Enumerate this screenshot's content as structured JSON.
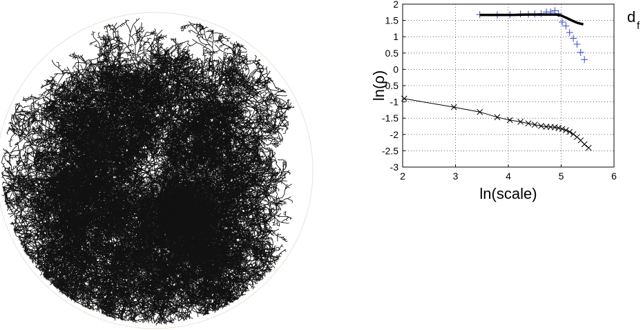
{
  "chart_data": {
    "type": "line",
    "xlabel": "ln(scale)",
    "ylabel": "ln(ρ)",
    "annotation": {
      "text": "d",
      "subscript": "f"
    },
    "xlim": [
      2,
      6
    ],
    "xticks": [
      2,
      3,
      4,
      5,
      6
    ],
    "ylim": [
      -3,
      2
    ],
    "yticks": [
      -3,
      -2.5,
      -2,
      -1.5,
      -1,
      -0.5,
      0,
      0.5,
      1,
      1.5,
      2
    ],
    "grid": true,
    "series": [
      {
        "color": "#000000",
        "marker": "x",
        "linewidth": 1,
        "x": [
          2.03,
          2.97,
          3.46,
          3.79,
          4.03,
          4.23,
          4.38,
          4.5,
          4.62,
          4.72,
          4.8,
          4.88,
          4.95,
          5.02,
          5.09,
          5.16,
          5.23,
          5.3,
          5.37,
          5.44,
          5.52
        ],
        "values": [
          -0.9,
          -1.16,
          -1.31,
          -1.47,
          -1.56,
          -1.61,
          -1.66,
          -1.7,
          -1.74,
          -1.76,
          -1.77,
          -1.78,
          -1.8,
          -1.83,
          -1.87,
          -1.92,
          -1.99,
          -2.08,
          -2.18,
          -2.3,
          -2.41
        ]
      },
      {
        "color": "#3344dd",
        "marker": "+",
        "linewidth": 0,
        "x": [
          3.46,
          3.79,
          4.03,
          4.23,
          4.38,
          4.5,
          4.62,
          4.72,
          4.8,
          4.88,
          4.95,
          5.02,
          5.09,
          5.16,
          5.23,
          5.3,
          5.37,
          5.44
        ],
        "values": [
          1.68,
          1.67,
          1.68,
          1.7,
          1.69,
          1.7,
          1.71,
          1.76,
          1.76,
          1.8,
          1.71,
          1.45,
          1.33,
          1.13,
          0.95,
          0.77,
          0.52,
          0.3
        ]
      },
      {
        "color": "#000000",
        "marker": "none",
        "linewidth": 3.5,
        "x": [
          3.46,
          3.8,
          4.1,
          4.4,
          4.7,
          4.9,
          5.0,
          5.1,
          5.2,
          5.3,
          5.42
        ],
        "values": [
          1.67,
          1.67,
          1.67,
          1.68,
          1.68,
          1.68,
          1.65,
          1.58,
          1.5,
          1.43,
          1.38
        ]
      }
    ]
  }
}
